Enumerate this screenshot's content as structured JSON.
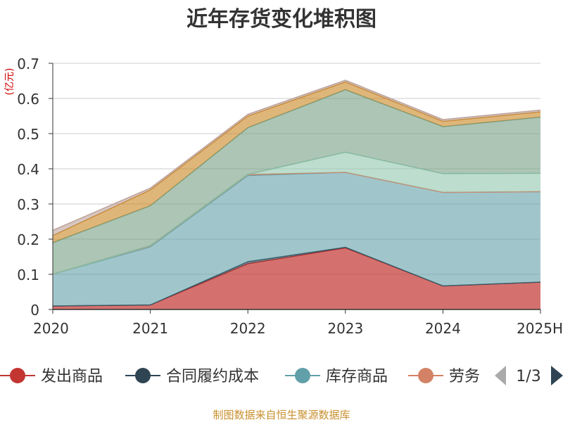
{
  "chart_data": {
    "type": "area",
    "stacked": true,
    "title": "近年存货变化堆积图",
    "unit": "(亿元)",
    "categories": [
      "2020",
      "2021",
      "2022",
      "2023",
      "2024",
      "2025H"
    ],
    "ylim": [
      0,
      0.7
    ],
    "yticks": [
      "0",
      "0.1",
      "0.2",
      "0.3",
      "0.4",
      "0.5",
      "0.6",
      "0.7"
    ],
    "grid": true,
    "series": [
      {
        "name": "发出商品",
        "values": [
          0.01,
          0.013,
          0.13,
          0.175,
          0.067,
          0.078
        ],
        "color": "#c23531"
      },
      {
        "name": "合同履约成本",
        "values": [
          0.0,
          0.0,
          0.006,
          0.002,
          0.0,
          0.0
        ],
        "color": "#2f4554"
      },
      {
        "name": "库存商品",
        "values": [
          0.09,
          0.165,
          0.245,
          0.213,
          0.266,
          0.257
        ],
        "color": "#61a0a8"
      },
      {
        "name": "劳务",
        "values": [
          0.0,
          0.003,
          0.003,
          0.0,
          0.0,
          0.0
        ],
        "color": "#d48265"
      },
      {
        "name": "",
        "values": [
          0.0,
          0.0,
          0.0,
          0.057,
          0.053,
          0.052
        ],
        "color": "#91c7ae"
      },
      {
        "name": "",
        "values": [
          0.09,
          0.114,
          0.133,
          0.178,
          0.134,
          0.16
        ],
        "color": "#749f83"
      },
      {
        "name": "",
        "values": [
          0.02,
          0.045,
          0.033,
          0.022,
          0.015,
          0.015
        ],
        "color": "#ca8622"
      },
      {
        "name": "",
        "values": [
          0.015,
          0.005,
          0.005,
          0.005,
          0.005,
          0.005
        ],
        "color": "#bda29a"
      }
    ],
    "legend": {
      "placement": "bottom",
      "items": [
        "发出商品",
        "合同履约成本",
        "库存商品",
        "劳务"
      ],
      "page": "1/3"
    },
    "source": "制图数据来自恒生聚源数据库"
  }
}
